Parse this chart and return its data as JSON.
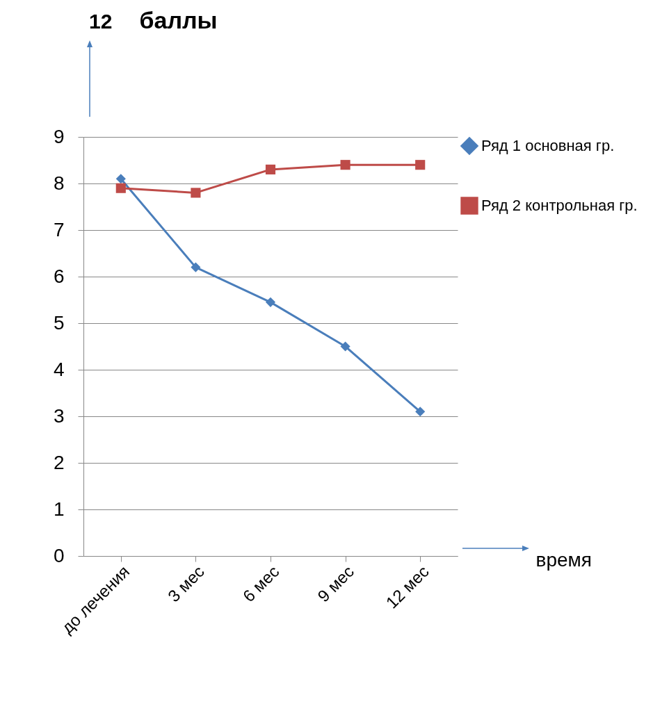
{
  "chart_data": {
    "type": "line",
    "ylabel": "баллы",
    "xlabel": "время",
    "annotations": [
      "12"
    ],
    "categories": [
      "до лечения",
      "3 мес",
      "6 мес",
      "9 мес",
      "12 мес"
    ],
    "series": [
      {
        "name": "Ряд 1 основная гр.",
        "color": "#4a7ebb",
        "marker": "diamond",
        "values": [
          8.1,
          6.2,
          5.45,
          4.5,
          3.1
        ]
      },
      {
        "name": "Ряд 2 контрольная гр.",
        "color": "#be4b48",
        "marker": "square",
        "values": [
          7.9,
          7.8,
          8.3,
          8.4,
          8.4
        ]
      }
    ],
    "ylim": [
      0,
      9
    ],
    "yticks": [
      0,
      1,
      2,
      3,
      4,
      5,
      6,
      7,
      8,
      9
    ],
    "grid": "y",
    "legend": "right"
  }
}
